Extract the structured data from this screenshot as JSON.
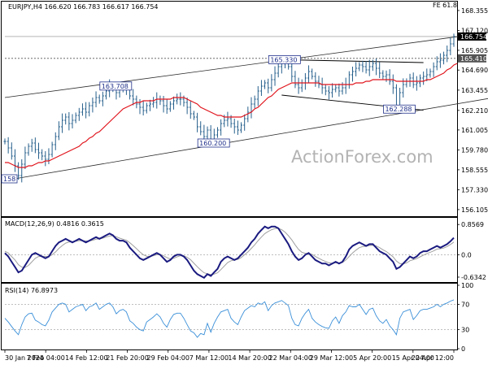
{
  "chart_data": [
    {
      "type": "line",
      "panel": "price",
      "title": "EURJPY,H4  166.620 166.783 166.617 166.754",
      "corner_label": "FE 61.8",
      "watermark": "ActionForex.com",
      "ylim": [
        155.8,
        168.8
      ],
      "y_ticks": [
        "168.355",
        "167.120",
        "165.905",
        "164.690",
        "163.455",
        "162.210",
        "161.005",
        "159.780",
        "158.555",
        "157.330",
        "156.105"
      ],
      "x_tick_labels": [
        "30 Jan 2024",
        "7 Feb 04:00",
        "14 Feb 12:00",
        "21 Feb 20:00",
        "29 Feb 04:00",
        "7 Mar 12:00",
        "14 Mar 20:00",
        "22 Mar 04:00",
        "29 Mar 12:00",
        "5 Apr 20:00",
        "15 Apr 04:00",
        "22 Apr 12:00"
      ],
      "price_tags": [
        {
          "value": 166.754,
          "text": "166.754",
          "color": "#000000"
        },
        {
          "value": 165.41,
          "text": "165.410",
          "color": "#555555"
        }
      ],
      "level_labels": [
        {
          "text": "165.330",
          "bar": 82,
          "value": 165.33
        },
        {
          "text": "163.708",
          "bar": 32,
          "value": 163.708
        },
        {
          "text": "162.288",
          "bar": 116,
          "value": 162.288
        },
        {
          "text": "160.200",
          "bar": 61,
          "value": 160.2
        },
        {
          "text": "158",
          "bar": 0,
          "value": 158.0
        }
      ],
      "series": [
        {
          "name": "close",
          "color": "#27608c",
          "values": [
            160.3,
            159.9,
            159.4,
            158.8,
            158.2,
            158.9,
            159.6,
            160.0,
            160.2,
            159.8,
            159.6,
            159.4,
            159.2,
            159.5,
            160.1,
            160.6,
            161.2,
            161.6,
            161.8,
            161.4,
            161.6,
            161.9,
            162.1,
            162.3,
            162.1,
            162.5,
            162.7,
            163.0,
            162.8,
            163.1,
            163.4,
            163.7,
            163.6,
            163.3,
            163.5,
            163.6,
            163.5,
            163.1,
            162.9,
            162.6,
            162.4,
            162.2,
            162.5,
            162.6,
            162.7,
            162.9,
            162.8,
            162.5,
            162.3,
            162.6,
            162.8,
            162.9,
            162.9,
            162.7,
            162.4,
            162.0,
            161.8,
            161.2,
            160.9,
            160.6,
            161.0,
            160.4,
            160.7,
            161.0,
            161.4,
            161.6,
            161.7,
            161.4,
            161.2,
            161.0,
            161.3,
            161.7,
            162.1,
            162.6,
            162.9,
            163.4,
            163.7,
            163.9,
            163.6,
            164.1,
            164.5,
            164.9,
            165.2,
            165.1,
            164.9,
            164.3,
            163.8,
            163.6,
            163.9,
            164.2,
            164.6,
            164.3,
            164.0,
            163.8,
            163.6,
            163.4,
            163.3,
            163.5,
            163.6,
            163.4,
            163.6,
            163.8,
            164.4,
            164.6,
            164.8,
            165.0,
            164.9,
            164.7,
            164.9,
            165.1,
            164.8,
            164.5,
            164.3,
            164.4,
            164.0,
            163.6,
            162.5,
            163.3,
            163.8,
            164.0,
            164.2,
            163.8,
            163.9,
            164.2,
            164.3,
            164.4,
            164.6,
            164.9,
            165.2,
            165.3,
            165.6,
            165.9,
            166.3,
            166.754
          ]
        },
        {
          "name": "ma",
          "color": "#e0141c",
          "values": [
            159.0,
            159.0,
            158.9,
            158.8,
            158.7,
            158.7,
            158.7,
            158.8,
            158.8,
            158.9,
            159.0,
            159.0,
            159.1,
            159.1,
            159.2,
            159.3,
            159.4,
            159.5,
            159.6,
            159.7,
            159.8,
            159.9,
            160.0,
            160.2,
            160.3,
            160.5,
            160.6,
            160.8,
            160.9,
            161.1,
            161.3,
            161.5,
            161.7,
            161.9,
            162.1,
            162.3,
            162.4,
            162.5,
            162.6,
            162.7,
            162.7,
            162.8,
            162.8,
            162.8,
            162.8,
            162.9,
            162.9,
            162.9,
            162.9,
            162.9,
            163.0,
            163.0,
            163.0,
            163.0,
            162.9,
            162.8,
            162.7,
            162.6,
            162.4,
            162.3,
            162.2,
            162.1,
            162.0,
            161.9,
            161.9,
            161.8,
            161.8,
            161.8,
            161.8,
            161.8,
            161.8,
            161.9,
            162.0,
            162.1,
            162.3,
            162.4,
            162.6,
            162.8,
            163.0,
            163.1,
            163.3,
            163.5,
            163.6,
            163.7,
            163.8,
            163.9,
            163.9,
            163.9,
            163.9,
            163.9,
            163.9,
            163.9,
            163.9,
            163.9,
            163.8,
            163.8,
            163.8,
            163.8,
            163.8,
            163.8,
            163.8,
            163.8,
            163.8,
            163.8,
            163.9,
            163.9,
            163.9,
            164.0,
            164.0,
            164.1,
            164.1,
            164.1,
            164.1,
            164.1,
            164.1,
            164.1,
            164.0,
            164.0,
            164.0,
            164.0,
            164.0,
            164.0,
            164.0,
            164.0,
            164.0,
            164.1,
            164.1,
            164.2,
            164.3,
            164.4,
            164.5,
            164.7,
            164.8,
            165.0,
            165.1
          ]
        }
      ],
      "trend_channel": {
        "upper": [
          [
            0,
            163.0
          ],
          [
            145,
            167.05
          ]
        ],
        "lower": [
          [
            0,
            157.9
          ],
          [
            145,
            163.0
          ]
        ]
      },
      "dashed_levels": [
        165.41
      ],
      "dashed_level_color": "#555555",
      "solid_levels": [
        166.754
      ],
      "solid_level_color": "#888888",
      "triangle_lines": [
        [
          [
            82,
            165.33
          ],
          [
            124,
            165.15
          ]
        ],
        [
          [
            82,
            163.15
          ],
          [
            124,
            162.22
          ]
        ]
      ]
    },
    {
      "type": "line",
      "panel": "macd",
      "title": "MACD(12,26,9)  0.4816  0.3615",
      "ylim": [
        -0.75,
        1.0
      ],
      "y_ticks": [
        "0.8569",
        "0.0",
        "-0.6342"
      ],
      "series": [
        {
          "name": "macd",
          "color": "#1a1a80",
          "values": [
            0.05,
            -0.05,
            -0.2,
            -0.35,
            -0.5,
            -0.45,
            -0.3,
            -0.15,
            0.0,
            0.05,
            0.0,
            -0.05,
            -0.1,
            -0.05,
            0.1,
            0.25,
            0.35,
            0.4,
            0.45,
            0.4,
            0.35,
            0.4,
            0.45,
            0.4,
            0.35,
            0.4,
            0.45,
            0.5,
            0.45,
            0.5,
            0.55,
            0.6,
            0.55,
            0.45,
            0.4,
            0.4,
            0.35,
            0.2,
            0.1,
            0.0,
            -0.1,
            -0.15,
            -0.1,
            -0.05,
            0.0,
            0.05,
            0.0,
            -0.1,
            -0.2,
            -0.15,
            -0.05,
            0.0,
            0.0,
            -0.05,
            -0.15,
            -0.3,
            -0.45,
            -0.55,
            -0.6,
            -0.65,
            -0.55,
            -0.6,
            -0.5,
            -0.4,
            -0.2,
            -0.1,
            -0.05,
            -0.1,
            -0.15,
            -0.1,
            0.0,
            0.1,
            0.2,
            0.35,
            0.45,
            0.6,
            0.7,
            0.8,
            0.75,
            0.8,
            0.8,
            0.75,
            0.6,
            0.45,
            0.3,
            0.1,
            -0.05,
            -0.15,
            -0.1,
            0.0,
            0.05,
            -0.05,
            -0.15,
            -0.2,
            -0.25,
            -0.25,
            -0.3,
            -0.25,
            -0.2,
            -0.25,
            -0.2,
            -0.05,
            0.15,
            0.25,
            0.3,
            0.35,
            0.3,
            0.25,
            0.3,
            0.3,
            0.2,
            0.1,
            0.05,
            0.0,
            -0.1,
            -0.2,
            -0.4,
            -0.35,
            -0.25,
            -0.15,
            -0.05,
            -0.1,
            -0.05,
            0.05,
            0.1,
            0.1,
            0.15,
            0.2,
            0.25,
            0.2,
            0.25,
            0.3,
            0.38,
            0.48
          ]
        },
        {
          "name": "signal",
          "color": "#a0a0a0",
          "values": [
            0.1,
            0.05,
            -0.05,
            -0.15,
            -0.28,
            -0.35,
            -0.36,
            -0.3,
            -0.2,
            -0.1,
            -0.05,
            -0.04,
            -0.05,
            -0.05,
            0.0,
            0.08,
            0.18,
            0.26,
            0.33,
            0.36,
            0.37,
            0.38,
            0.4,
            0.4,
            0.39,
            0.39,
            0.41,
            0.44,
            0.45,
            0.47,
            0.5,
            0.53,
            0.54,
            0.51,
            0.47,
            0.44,
            0.41,
            0.34,
            0.26,
            0.17,
            0.08,
            0.0,
            -0.04,
            -0.05,
            -0.03,
            0.0,
            0.0,
            -0.03,
            -0.08,
            -0.12,
            -0.1,
            -0.06,
            -0.03,
            -0.03,
            -0.07,
            -0.14,
            -0.24,
            -0.34,
            -0.43,
            -0.51,
            -0.54,
            -0.56,
            -0.55,
            -0.51,
            -0.42,
            -0.32,
            -0.22,
            -0.17,
            -0.15,
            -0.13,
            -0.08,
            0.0,
            0.08,
            0.18,
            0.28,
            0.4,
            0.5,
            0.6,
            0.66,
            0.71,
            0.74,
            0.75,
            0.71,
            0.64,
            0.54,
            0.42,
            0.28,
            0.15,
            0.07,
            0.04,
            0.04,
            0.01,
            -0.05,
            -0.1,
            -0.15,
            -0.19,
            -0.23,
            -0.24,
            -0.23,
            -0.23,
            -0.22,
            -0.15,
            -0.05,
            0.05,
            0.13,
            0.2,
            0.23,
            0.24,
            0.26,
            0.27,
            0.25,
            0.2,
            0.14,
            0.09,
            0.02,
            -0.06,
            -0.18,
            -0.25,
            -0.26,
            -0.23,
            -0.17,
            -0.14,
            -0.11,
            -0.06,
            -0.01,
            0.03,
            0.07,
            0.11,
            0.16,
            0.17,
            0.19,
            0.23,
            0.29,
            0.36
          ]
        }
      ]
    },
    {
      "type": "line",
      "panel": "rsi",
      "title": "RSI(14)  76.8973",
      "ylim": [
        0,
        100
      ],
      "y_ticks": [
        "100",
        "70",
        "30",
        "0"
      ],
      "levels": [
        70,
        30
      ],
      "series": [
        {
          "name": "rsi",
          "color": "#3a8fd8",
          "values": [
            48,
            42,
            35,
            28,
            22,
            38,
            50,
            55,
            56,
            45,
            42,
            38,
            36,
            45,
            58,
            64,
            70,
            72,
            70,
            58,
            62,
            66,
            68,
            70,
            60,
            66,
            68,
            72,
            62,
            66,
            70,
            72,
            66,
            55,
            60,
            62,
            58,
            44,
            40,
            34,
            30,
            28,
            42,
            46,
            50,
            55,
            50,
            40,
            34,
            46,
            54,
            56,
            56,
            48,
            38,
            28,
            25,
            18,
            24,
            22,
            40,
            26,
            40,
            50,
            58,
            60,
            62,
            48,
            42,
            38,
            50,
            60,
            64,
            68,
            66,
            72,
            70,
            74,
            60,
            68,
            72,
            74,
            76,
            72,
            68,
            48,
            38,
            36,
            48,
            56,
            62,
            48,
            42,
            38,
            35,
            33,
            32,
            44,
            50,
            40,
            52,
            58,
            68,
            66,
            66,
            70,
            62,
            54,
            62,
            64,
            52,
            44,
            40,
            46,
            36,
            30,
            22,
            48,
            58,
            60,
            62,
            46,
            52,
            60,
            62,
            62,
            64,
            66,
            70,
            66,
            70,
            72,
            75,
            77
          ]
        }
      ]
    }
  ]
}
